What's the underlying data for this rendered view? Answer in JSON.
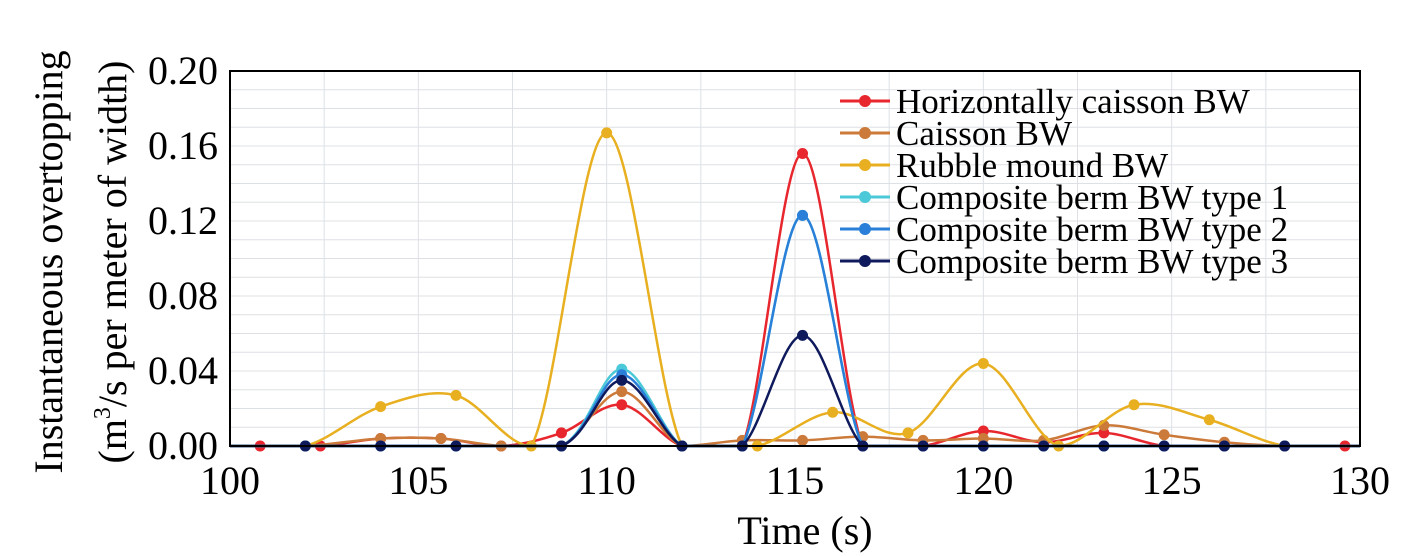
{
  "chart_data": {
    "type": "line",
    "xlabel": "Time (s)",
    "ylabel_line1": "Instantaneous overtopping",
    "ylabel_line2_pre": "(m",
    "ylabel_line2_sup": "3",
    "ylabel_line2_post": "/s per meter of width)",
    "xlim": [
      100,
      130
    ],
    "ylim": [
      0,
      0.2
    ],
    "xticks": [
      "100",
      "105",
      "110",
      "115",
      "120",
      "125",
      "130"
    ],
    "yticks": [
      "0.00",
      "0.04",
      "0.08",
      "0.12",
      "0.16",
      "0.20"
    ],
    "grid": true,
    "legend_position": "top-right",
    "series": [
      {
        "name": "Horizontally caisson BW",
        "color": "#e8262d",
        "points": [
          [
            100,
            0
          ],
          [
            100.8,
            0
          ],
          [
            102.4,
            0
          ],
          [
            104,
            0.004
          ],
          [
            105.6,
            0.004
          ],
          [
            107.2,
            0
          ],
          [
            108.8,
            0.007
          ],
          [
            110.4,
            0.022
          ],
          [
            112,
            0
          ],
          [
            113.6,
            0
          ],
          [
            115.2,
            0.156
          ],
          [
            116.8,
            0
          ],
          [
            118.4,
            0
          ],
          [
            120,
            0.008
          ],
          [
            121.6,
            0.002
          ],
          [
            123.2,
            0.007
          ],
          [
            124.8,
            0
          ],
          [
            126.4,
            0
          ],
          [
            128,
            0
          ],
          [
            129.6,
            0
          ],
          [
            130,
            0
          ]
        ]
      },
      {
        "name": "Caisson BW",
        "color": "#cc7a3a",
        "points": [
          [
            100,
            0
          ],
          [
            102,
            0
          ],
          [
            104,
            0.004
          ],
          [
            105.6,
            0.004
          ],
          [
            107.2,
            0
          ],
          [
            108.8,
            0
          ],
          [
            110.4,
            0.029
          ],
          [
            112,
            0
          ],
          [
            113.6,
            0.003
          ],
          [
            115.2,
            0.003
          ],
          [
            116.8,
            0.005
          ],
          [
            118.4,
            0.003
          ],
          [
            120,
            0.004
          ],
          [
            121.6,
            0.003
          ],
          [
            123.2,
            0.011
          ],
          [
            124.8,
            0.006
          ],
          [
            126.4,
            0.002
          ],
          [
            128,
            0
          ],
          [
            130,
            0
          ]
        ]
      },
      {
        "name": "Rubble mound BW",
        "color": "#e8b020",
        "points": [
          [
            100,
            0
          ],
          [
            102,
            0
          ],
          [
            104,
            0.021
          ],
          [
            106,
            0.027
          ],
          [
            108,
            0
          ],
          [
            110,
            0.167
          ],
          [
            112,
            0
          ],
          [
            114,
            0
          ],
          [
            116,
            0.018
          ],
          [
            118,
            0.007
          ],
          [
            120,
            0.044
          ],
          [
            122,
            0
          ],
          [
            124,
            0.022
          ],
          [
            126,
            0.014
          ],
          [
            128,
            0
          ],
          [
            130,
            0
          ]
        ]
      },
      {
        "name": "Composite berm BW type 1",
        "color": "#4cc9d8",
        "points": [
          [
            100,
            0
          ],
          [
            102,
            0
          ],
          [
            104,
            0
          ],
          [
            106,
            0
          ],
          [
            108.8,
            0
          ],
          [
            110.4,
            0.041
          ],
          [
            112,
            0
          ],
          [
            113.6,
            0
          ],
          [
            115.2,
            0.123
          ],
          [
            116.8,
            0
          ],
          [
            118.4,
            0
          ],
          [
            120,
            0
          ],
          [
            121.6,
            0
          ],
          [
            123.2,
            0
          ],
          [
            124.8,
            0
          ],
          [
            126.4,
            0
          ],
          [
            128,
            0
          ],
          [
            130,
            0
          ]
        ]
      },
      {
        "name": "Composite berm BW type 2",
        "color": "#2a7fd8",
        "points": [
          [
            100,
            0
          ],
          [
            102,
            0
          ],
          [
            104,
            0
          ],
          [
            106,
            0
          ],
          [
            108.8,
            0
          ],
          [
            110.4,
            0.038
          ],
          [
            112,
            0
          ],
          [
            113.6,
            0
          ],
          [
            115.2,
            0.123
          ],
          [
            116.8,
            0
          ],
          [
            118.4,
            0
          ],
          [
            120,
            0
          ],
          [
            121.6,
            0
          ],
          [
            123.2,
            0
          ],
          [
            124.8,
            0
          ],
          [
            126.4,
            0
          ],
          [
            128,
            0
          ],
          [
            130,
            0
          ]
        ]
      },
      {
        "name": "Composite berm BW type 3",
        "color": "#0f1a5c",
        "points": [
          [
            100,
            0
          ],
          [
            102,
            0
          ],
          [
            104,
            0
          ],
          [
            106,
            0
          ],
          [
            108.8,
            0
          ],
          [
            110.4,
            0.035
          ],
          [
            112,
            0
          ],
          [
            113.6,
            0
          ],
          [
            115.2,
            0.059
          ],
          [
            116.8,
            0
          ],
          [
            118.4,
            0
          ],
          [
            120,
            0
          ],
          [
            121.6,
            0
          ],
          [
            123.2,
            0
          ],
          [
            124.8,
            0
          ],
          [
            126.4,
            0
          ],
          [
            128,
            0
          ],
          [
            130,
            0
          ]
        ]
      }
    ]
  }
}
